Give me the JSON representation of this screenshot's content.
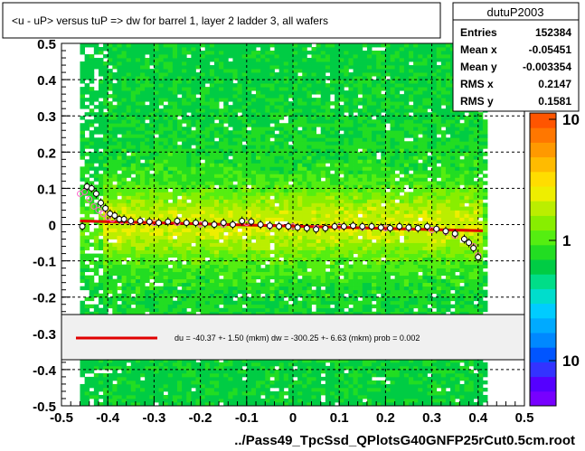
{
  "chart_data": {
    "type": "heatmap",
    "title": "<u - uP>       versus  tuP =>  dw for barrel 1, layer 2 ladder 3, all wafers",
    "xlabel": "../Pass49_TpcSsd_QPlotsG40GNFP25rCut0.5cm.root",
    "ylabel": "",
    "xlim": [
      -0.5,
      0.5
    ],
    "ylim": [
      -0.5,
      0.5
    ],
    "x_ticks": [
      "-0.5",
      "-0.4",
      "-0.3",
      "-0.2",
      "-0.1",
      "0",
      "0.1",
      "0.2",
      "0.3",
      "0.4",
      "0.5"
    ],
    "y_ticks": [
      "-0.5",
      "-0.4",
      "-0.3",
      "-0.2",
      "-0.1",
      "0",
      "0.1",
      "0.2",
      "0.3",
      "0.4",
      "0.5"
    ],
    "grid": true,
    "colorbar": {
      "scale": "log",
      "tick_labels": [
        "10",
        "1",
        "10"
      ]
    },
    "stats_box": {
      "name": "dutuP2003",
      "rows": [
        {
          "label": "Entries",
          "value": "152384"
        },
        {
          "label": "Mean x",
          "value": "-0.05451"
        },
        {
          "label": "Mean y",
          "value": "-0.003354"
        },
        {
          "label": "RMS x",
          "value": "0.2147"
        },
        {
          "label": "RMS y",
          "value": "0.1581"
        }
      ]
    },
    "fit_legend": "du =  -40.37 +-  1.50 (mkm) dw = -300.25 +-  6.63 (mkm) prob = 0.002",
    "fit_line": {
      "x": [
        -0.46,
        0.41
      ],
      "y": [
        0.01,
        -0.017
      ]
    },
    "profile_black": {
      "x": [
        -0.455,
        -0.445,
        -0.435,
        -0.425,
        -0.415,
        -0.405,
        -0.395,
        -0.385,
        -0.375,
        -0.365,
        -0.35,
        -0.33,
        -0.31,
        -0.29,
        -0.27,
        -0.25,
        -0.23,
        -0.21,
        -0.19,
        -0.17,
        -0.15,
        -0.13,
        -0.11,
        -0.09,
        -0.07,
        -0.05,
        -0.03,
        -0.01,
        0.01,
        0.03,
        0.05,
        0.07,
        0.09,
        0.11,
        0.13,
        0.15,
        0.17,
        0.19,
        0.21,
        0.23,
        0.25,
        0.27,
        0.29,
        0.31,
        0.33,
        0.35,
        0.37,
        0.38,
        0.39,
        0.4
      ],
      "y": [
        -0.005,
        0.105,
        0.1,
        0.085,
        0.06,
        0.045,
        0.03,
        0.025,
        0.015,
        0.015,
        0.01,
        0.01,
        0.008,
        0.005,
        0.008,
        0.01,
        0.005,
        0.005,
        0.003,
        0.0,
        0.005,
        0.0,
        0.01,
        0.008,
        0.0,
        -0.003,
        -0.005,
        -0.005,
        -0.008,
        -0.01,
        -0.013,
        -0.01,
        -0.005,
        -0.005,
        -0.003,
        -0.005,
        -0.005,
        -0.008,
        -0.01,
        -0.005,
        -0.008,
        -0.01,
        -0.005,
        -0.012,
        -0.018,
        -0.025,
        -0.04,
        -0.05,
        -0.065,
        -0.09
      ]
    },
    "profile_pink": {
      "x": [
        -0.46,
        -0.45,
        -0.44,
        -0.43,
        -0.42,
        -0.41,
        -0.4,
        -0.39,
        -0.37,
        -0.35,
        -0.3,
        -0.25,
        -0.2,
        -0.15,
        -0.1,
        -0.05,
        0.0,
        0.05,
        0.1,
        0.15,
        0.2,
        0.25,
        0.3,
        0.33,
        0.35,
        0.37,
        0.39,
        0.4
      ],
      "y": [
        0.085,
        0.09,
        0.07,
        0.05,
        0.04,
        0.03,
        0.02,
        0.015,
        0.01,
        0.008,
        0.005,
        0.005,
        0.0,
        0.0,
        0.005,
        -0.005,
        -0.005,
        -0.01,
        -0.005,
        -0.008,
        -0.01,
        -0.01,
        -0.015,
        -0.02,
        -0.03,
        -0.04,
        -0.06,
        -0.085
      ]
    }
  }
}
